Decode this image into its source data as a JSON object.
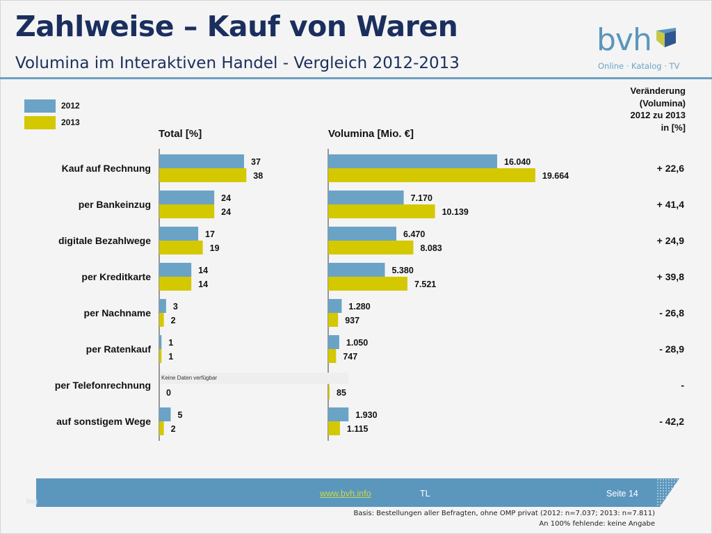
{
  "header": {
    "title": "Zahlweise – Kauf von Waren",
    "subtitle": "Volumina im Interaktiven Handel - Vergleich 2012-2013"
  },
  "logo": {
    "text": "bvh",
    "tagline": "Online · Katalog · TV"
  },
  "colors": {
    "series_2012": "#6ba3c6",
    "series_2013": "#d4c800",
    "title": "#1a2f5e",
    "accent": "#5b96bd"
  },
  "legend": [
    {
      "label": "2012"
    },
    {
      "label": "2013"
    }
  ],
  "columns": {
    "total_header": "Total [%]",
    "volume_header": "Volumina [Mio. €]",
    "change_header": [
      "Veränderung",
      "(Volumina)",
      "2012 zu 2013",
      "in [%]"
    ]
  },
  "chart_data": {
    "type": "bar",
    "orientation": "horizontal",
    "title": "Zahlweise – Kauf von Waren",
    "subtitle": "Volumina im Interaktiven Handel - Vergleich 2012-2013",
    "categories": [
      "Kauf auf Rechnung",
      "per Bankeinzug",
      "digitale Bezahlwege",
      "per Kreditkarte",
      "per Nachname",
      "per Ratenkauf",
      "per Telefonrechnung",
      "auf sonstigem Wege"
    ],
    "legend_position": "top-left",
    "panels": [
      {
        "name": "Total [%]",
        "xlim": [
          0,
          50
        ],
        "series": [
          {
            "name": "2012",
            "values": [
              37,
              24,
              17,
              14,
              3,
              1,
              null,
              5
            ],
            "labels": [
              "37",
              "24",
              "17",
              "14",
              "3",
              "1",
              "Keine Daten verfügbar",
              "5"
            ]
          },
          {
            "name": "2013",
            "values": [
              38,
              24,
              19,
              14,
              2,
              1,
              0,
              2
            ],
            "labels": [
              "38",
              "24",
              "19",
              "14",
              "2",
              "1",
              "0",
              "2"
            ]
          }
        ]
      },
      {
        "name": "Volumina [Mio. €]",
        "xlim": [
          0,
          20000
        ],
        "series": [
          {
            "name": "2012",
            "values": [
              16040,
              7170,
              6470,
              5380,
              1280,
              1050,
              null,
              1930
            ],
            "labels": [
              "16.040",
              "7.170",
              "6.470",
              "5.380",
              "1.280",
              "1.050",
              "",
              "1.930"
            ]
          },
          {
            "name": "2013",
            "values": [
              19664,
              10139,
              8083,
              7521,
              937,
              747,
              85,
              1115
            ],
            "labels": [
              "19.664",
              "10.139",
              "8.083",
              "7.521",
              "937",
              "747",
              "85",
              "1.115"
            ]
          }
        ]
      }
    ],
    "change_percent": [
      "+ 22,6",
      "+ 41,4",
      "+ 24,9",
      "+ 39,8",
      "- 26,8",
      "- 28,9",
      "-",
      "- 42,2"
    ]
  },
  "footer": {
    "link": "www.bvh.info",
    "author": "TL",
    "page": "Seite 14",
    "faint": "bvg",
    "note_basis": "Basis: Bestellungen aller Befragten, ohne OMP privat (2012: n=7.037; 2013: n=7.811)",
    "note_missing": "An 100% fehlende: keine Angabe"
  }
}
